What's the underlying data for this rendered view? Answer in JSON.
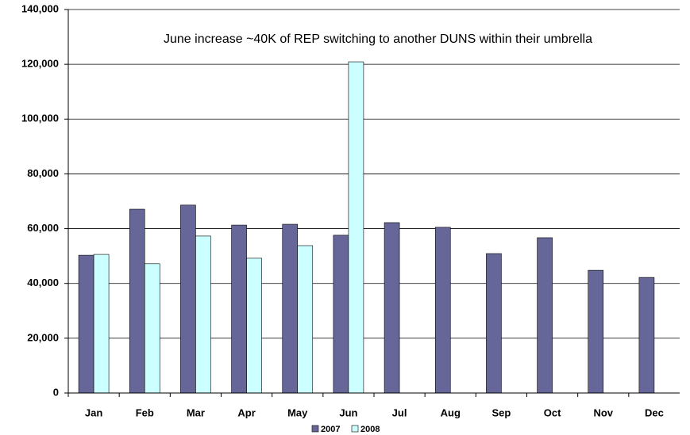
{
  "chart_data": {
    "type": "bar",
    "annotation": "June increase ~40K of REP switching to another DUNS within their umbrella",
    "categories": [
      "Jan",
      "Feb",
      "Mar",
      "Apr",
      "May",
      "Jun",
      "Jul",
      "Aug",
      "Sep",
      "Oct",
      "Nov",
      "Dec"
    ],
    "series": [
      {
        "name": "2007",
        "color": "#666699",
        "values": [
          50300,
          67100,
          68600,
          61300,
          61600,
          57600,
          62200,
          60500,
          50900,
          56700,
          44800,
          42200
        ]
      },
      {
        "name": "2008",
        "color": "#ccffff",
        "values": [
          50600,
          47200,
          57300,
          49200,
          53800,
          120900,
          null,
          null,
          null,
          null,
          null,
          null
        ]
      }
    ],
    "ylim": [
      0,
      140000
    ],
    "yticks": [
      0,
      {
        "value": 20000,
        "label": "20,000"
      },
      {
        "value": 40000,
        "label": "40,000"
      },
      {
        "value": 60000,
        "label": "60,000"
      },
      {
        "value": 80000,
        "label": "80,000"
      },
      {
        "value": 100000,
        "label": "100,000"
      },
      {
        "value": 120000,
        "label": "120,000"
      },
      {
        "value": 140000,
        "label": "140,000"
      }
    ],
    "grid": true,
    "legend": "bottom"
  }
}
